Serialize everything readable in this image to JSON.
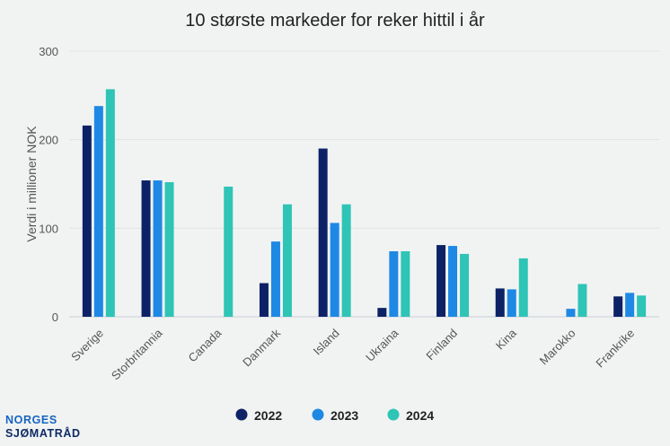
{
  "chart_data": {
    "type": "bar",
    "title": "10 største markeder for reker hittil i år",
    "xlabel": "",
    "ylabel": "Verdi i millioner NOK",
    "ylim": [
      0,
      300
    ],
    "yticks": [
      0,
      100,
      200,
      300
    ],
    "grid": true,
    "legend": "bottom",
    "categories": [
      "Sverige",
      "Storbritannia",
      "Canada",
      "Danmark",
      "Island",
      "Ukraina",
      "Finland",
      "Kina",
      "Marokko",
      "Frankrike"
    ],
    "series": [
      {
        "name": "2022",
        "color": "#0d2266",
        "values": [
          216,
          154,
          0,
          38,
          190,
          10,
          81,
          32,
          0,
          23
        ]
      },
      {
        "name": "2023",
        "color": "#1e88e5",
        "values": [
          238,
          154,
          0,
          85,
          106,
          74,
          80,
          31,
          9,
          27
        ]
      },
      {
        "name": "2024",
        "color": "#2ec4b6",
        "values": [
          257,
          152,
          147,
          127,
          127,
          74,
          71,
          66,
          37,
          24
        ]
      }
    ]
  },
  "logo": {
    "line1": "NORGES",
    "line2": "SJØMATRÅD"
  }
}
